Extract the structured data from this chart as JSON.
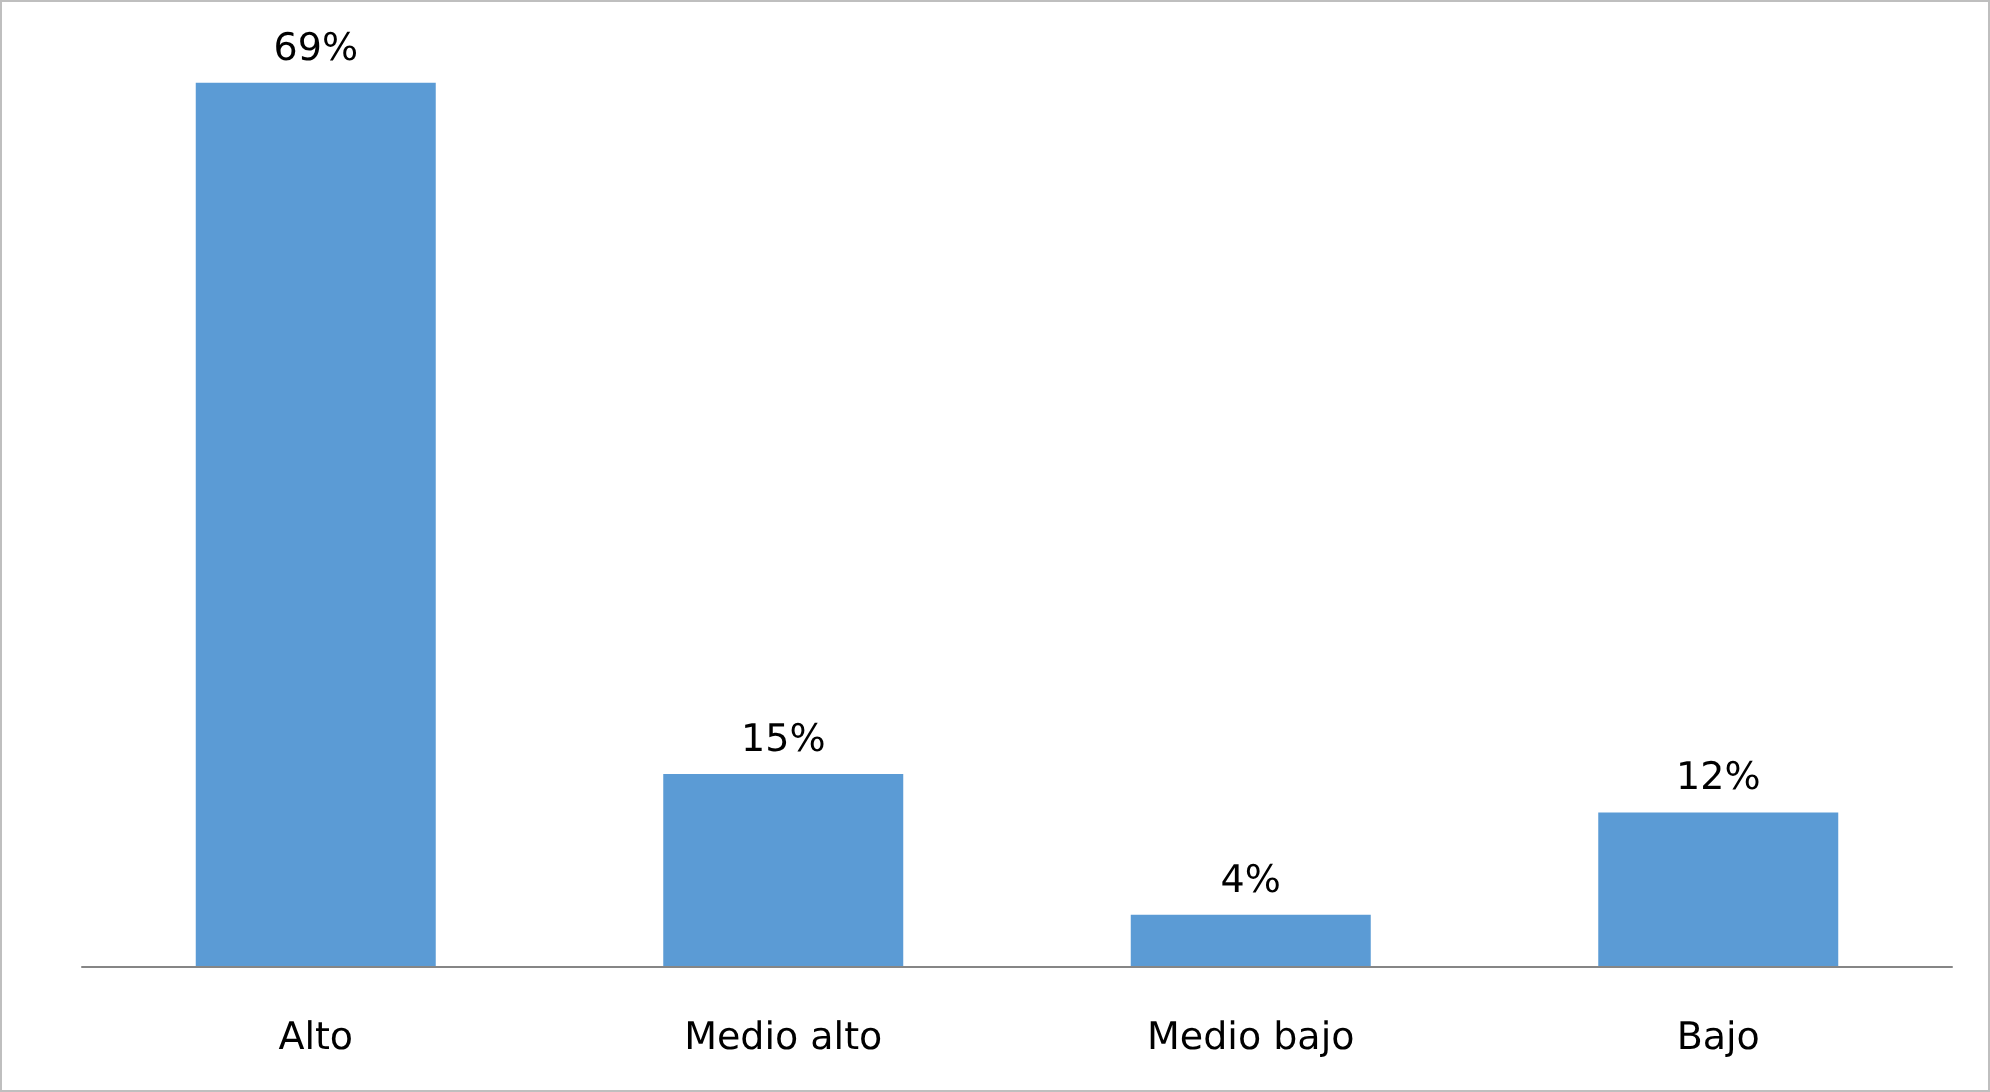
{
  "chart_data": {
    "type": "bar",
    "categories": [
      "Alto",
      "Medio alto",
      "Medio bajo",
      "Bajo"
    ],
    "values": [
      69,
      15,
      4,
      12
    ],
    "color": "#5b9bd5",
    "value_labels": [
      "69%",
      "15%",
      "4%",
      "12%"
    ],
    "grid": false
  }
}
